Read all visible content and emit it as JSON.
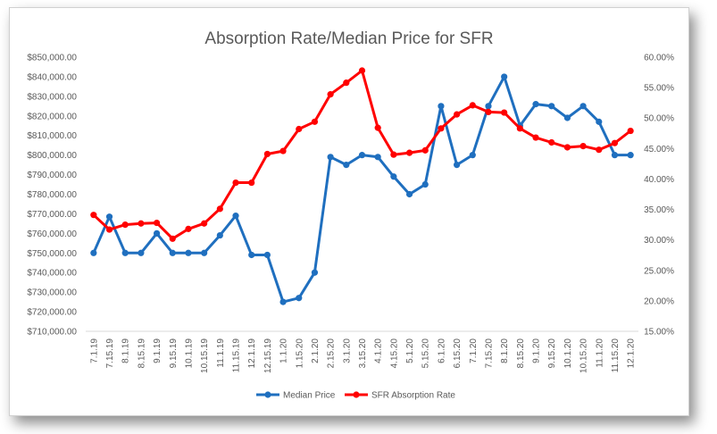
{
  "chart_data": {
    "type": "line",
    "title": "Absorption Rate/Median Price for SFR",
    "categories": [
      "7.1.19",
      "7.15.19",
      "8.1.19",
      "8.15.19",
      "9.1.19",
      "9.15.19",
      "10.1.19",
      "10.15.19",
      "11.1.19",
      "11.15.19",
      "12.1.19",
      "12.15.19",
      "1.1.20",
      "1.15.20",
      "2.1.20",
      "2.15.20",
      "3.1.20",
      "3.15.20",
      "4.1.20",
      "4.15.20",
      "5.1.20",
      "5.15.20",
      "6.1.20",
      "6.15.20",
      "7.1.20",
      "7.15.20",
      "8.1.20",
      "8.15.20",
      "9.1.20",
      "9.15.20",
      "10.1.20",
      "10.15.20",
      "11.1.20",
      "11.15.20",
      "12.1.20"
    ],
    "series": [
      {
        "name": "Median Price",
        "axis": "left",
        "color": "#1f6fbf",
        "values": [
          750000,
          768500,
          750000,
          750000,
          760000,
          750000,
          750000,
          750000,
          759000,
          769000,
          749000,
          749000,
          725000,
          727000,
          740000,
          799000,
          795000,
          800000,
          799000,
          789000,
          780000,
          785000,
          825000,
          795000,
          800000,
          825000,
          840000,
          815000,
          826000,
          825000,
          819000,
          825000,
          817000,
          800000,
          800000
        ]
      },
      {
        "name": "SFR Absorption Rate",
        "axis": "right",
        "color": "#ff0000",
        "values": [
          0.341,
          0.317,
          0.325,
          0.327,
          0.328,
          0.302,
          0.318,
          0.327,
          0.351,
          0.394,
          0.394,
          0.441,
          0.446,
          0.482,
          0.494,
          0.539,
          0.558,
          0.578,
          0.484,
          0.44,
          0.443,
          0.447,
          0.483,
          0.506,
          0.521,
          0.51,
          0.509,
          0.483,
          0.468,
          0.46,
          0.452,
          0.454,
          0.448,
          0.459,
          0.479
        ]
      }
    ],
    "y_left": {
      "min": 710000,
      "max": 850000,
      "step": 10000,
      "ticks": [
        "$710,000.00",
        "$720,000.00",
        "$730,000.00",
        "$740,000.00",
        "$750,000.00",
        "$760,000.00",
        "$770,000.00",
        "$780,000.00",
        "$790,000.00",
        "$800,000.00",
        "$810,000.00",
        "$820,000.00",
        "$830,000.00",
        "$840,000.00",
        "$850,000.00"
      ]
    },
    "y_right": {
      "min": 0.15,
      "max": 0.6,
      "step": 0.05,
      "ticks": [
        "15.00%",
        "20.00%",
        "25.00%",
        "30.00%",
        "35.00%",
        "40.00%",
        "45.00%",
        "50.00%",
        "55.00%",
        "60.00%"
      ]
    },
    "grid": false,
    "legend_position": "bottom"
  }
}
